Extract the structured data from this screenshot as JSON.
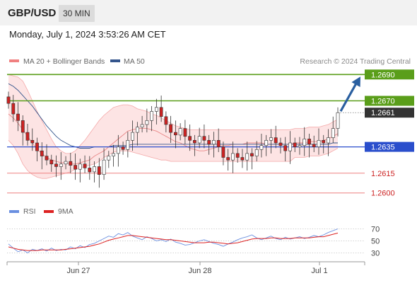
{
  "header": {
    "symbol": "GBP/USD",
    "timeframe": "30 MIN"
  },
  "datetime": "Monday, July 1, 2024 3:53:26 AM CET",
  "colors": {
    "resistance": "#5a9e1a",
    "support": "#2a4ecc",
    "minor_level": "#ee8080",
    "bollinger": "#f4a8a8",
    "bollinger_fill": "#fde4e4",
    "ma50": "#34558c",
    "bull_candle": "#ffffff",
    "bear_candle": "#cc2222",
    "rsi": "#6a8fe0",
    "rsi_ma": "#dd2222",
    "current_price": "#333333",
    "arrow": "#2a5fa0"
  },
  "chart_data": [
    {
      "type": "candlestick",
      "symbol": "GBP/USD",
      "interval": "30 MIN",
      "legend": [
        {
          "name": "MA 20 + Bollinger Bands",
          "color": "#f08080"
        },
        {
          "name": "MA 50",
          "color": "#34558c"
        }
      ],
      "source": "Research © 2024 Trading Central",
      "xticks": [
        "Jun 27",
        "Jun 28",
        "Jul 1"
      ],
      "ylim": [
        1.2595,
        1.2695
      ],
      "levels": [
        {
          "value": 1.269,
          "label": "1.2690",
          "kind": "target"
        },
        {
          "value": 1.267,
          "label": "1.2670",
          "kind": "resistance"
        },
        {
          "value": 1.2661,
          "label": "1.2661",
          "kind": "current"
        },
        {
          "value": 1.2635,
          "label": "1.2635",
          "kind": "support"
        },
        {
          "value": 1.2615,
          "label": "1.2615",
          "kind": "minor"
        },
        {
          "value": 1.26,
          "label": "1.2600",
          "kind": "minor"
        }
      ],
      "close_series": [
        1.2668,
        1.266,
        1.2655,
        1.2646,
        1.264,
        1.2638,
        1.2632,
        1.2628,
        1.2625,
        1.2622,
        1.262,
        1.2622,
        1.2624,
        1.2621,
        1.2618,
        1.2622,
        1.2619,
        1.2616,
        1.262,
        1.2614,
        1.2625,
        1.2628,
        1.263,
        1.2635,
        1.2633,
        1.264,
        1.2646,
        1.265,
        1.2652,
        1.2655,
        1.2662,
        1.2665,
        1.2658,
        1.2652,
        1.2646,
        1.2644,
        1.2649,
        1.2643,
        1.264,
        1.2638,
        1.2643,
        1.264,
        1.2637,
        1.264,
        1.2635,
        1.2627,
        1.2625,
        1.263,
        1.2627,
        1.2625,
        1.263,
        1.2628,
        1.2633,
        1.2636,
        1.264,
        1.2642,
        1.2638,
        1.2636,
        1.2632,
        1.2638,
        1.2635,
        1.2636,
        1.2641,
        1.2637,
        1.2635,
        1.264,
        1.2638,
        1.2642,
        1.2649,
        1.2661
      ],
      "ma20": [
        1.266,
        1.2657,
        1.2653,
        1.2648,
        1.2643,
        1.2638,
        1.2633,
        1.263,
        1.2627,
        1.2625,
        1.2624,
        1.2623,
        1.2623,
        1.2622,
        1.2622,
        1.2623,
        1.2624,
        1.2625,
        1.2628,
        1.263,
        1.2632,
        1.2635,
        1.2638,
        1.2641,
        1.2644,
        1.2647,
        1.2648,
        1.2649,
        1.2649,
        1.2649,
        1.2648,
        1.2647,
        1.2645,
        1.2643,
        1.2641,
        1.2639,
        1.2638,
        1.2636,
        1.2634,
        1.2633,
        1.2632,
        1.2632,
        1.2633,
        1.2634,
        1.2635,
        1.2636,
        1.2636,
        1.2637,
        1.2637,
        1.2637,
        1.2638,
        1.2638,
        1.2638,
        1.2638,
        1.2637,
        1.2637,
        1.2637,
        1.2637,
        1.2637,
        1.2637,
        1.2638,
        1.2638,
        1.2638,
        1.2639,
        1.2639,
        1.2639,
        1.264,
        1.2641,
        1.2643,
        1.2645
      ],
      "bb_upper": [
        1.269,
        1.2689,
        1.2688,
        1.2685,
        1.2678,
        1.267,
        1.2662,
        1.2655,
        1.2648,
        1.2641,
        1.2635,
        1.2632,
        1.263,
        1.263,
        1.2632,
        1.2636,
        1.264,
        1.2645,
        1.265,
        1.2655,
        1.2659,
        1.2662,
        1.2665,
        1.2666,
        1.2667,
        1.2667,
        1.2666,
        1.2664,
        1.2663,
        1.2662,
        1.266,
        1.2659,
        1.2657,
        1.2655,
        1.2653,
        1.2651,
        1.265,
        1.2649,
        1.2648,
        1.2648,
        1.2648,
        1.2648,
        1.2648,
        1.2648,
        1.2648,
        1.2648,
        1.2648,
        1.2648,
        1.2648,
        1.2648,
        1.2648,
        1.2648,
        1.2648,
        1.2648,
        1.2648,
        1.2648,
        1.2648,
        1.2648,
        1.2648,
        1.2648,
        1.2649,
        1.2649,
        1.2649,
        1.265,
        1.265,
        1.265,
        1.2651,
        1.2652,
        1.2654,
        1.2656
      ],
      "bb_lower": [
        1.264,
        1.2636,
        1.263,
        1.2622,
        1.2617,
        1.2614,
        1.2612,
        1.2611,
        1.2611,
        1.2612,
        1.2613,
        1.2614,
        1.2615,
        1.2616,
        1.2618,
        1.2619,
        1.262,
        1.2621,
        1.2622,
        1.2624,
        1.2627,
        1.2629,
        1.2631,
        1.2632,
        1.2632,
        1.2632,
        1.2631,
        1.263,
        1.2629,
        1.2628,
        1.2627,
        1.2626,
        1.2625,
        1.2625,
        1.2624,
        1.2624,
        1.2624,
        1.2624,
        1.2624,
        1.2624,
        1.2624,
        1.2624,
        1.2624,
        1.2624,
        1.2624,
        1.2624,
        1.2624,
        1.2624,
        1.2624,
        1.2624,
        1.2624,
        1.2624,
        1.2624,
        1.2624,
        1.2624,
        1.2624,
        1.2624,
        1.2624,
        1.2624,
        1.2624,
        1.2627,
        1.2627,
        1.2627,
        1.2628,
        1.2628,
        1.2628,
        1.2629,
        1.263,
        1.2632,
        1.2634
      ],
      "ma50": [
        1.2683,
        1.2681,
        1.2678,
        1.2674,
        1.267,
        1.2666,
        1.2661,
        1.2656,
        1.2651,
        1.2647,
        1.2643,
        1.264,
        1.2638,
        1.2636,
        1.2635,
        1.2634,
        1.2634,
        1.2634,
        1.2635,
        1.2635,
        1.2635,
        1.2635,
        1.2636,
        1.2636,
        1.2636,
        1.2636,
        1.2637,
        1.2637,
        1.2637,
        1.2637,
        1.2637,
        1.2637,
        1.2637,
        1.2637,
        1.2637,
        1.2637,
        1.2637,
        1.2637,
        1.2637,
        1.2637,
        1.2637,
        1.2637,
        1.2637,
        1.2637,
        1.2637,
        1.2637,
        1.2637,
        1.2637,
        1.2637,
        1.2637,
        1.2637,
        1.2637,
        1.2637,
        1.2637,
        1.2637,
        1.2637,
        1.2637,
        1.2637,
        1.2637,
        1.2637,
        1.2637,
        1.2637,
        1.2637,
        1.2637,
        1.2637,
        1.2637,
        1.2637,
        1.2637,
        1.2638,
        1.2638
      ]
    },
    {
      "type": "line",
      "indicator": "RSI",
      "legend": [
        {
          "name": "RSI",
          "color": "#6a8fe0"
        },
        {
          "name": "9MA",
          "color": "#dd2222"
        }
      ],
      "yticks": [
        70,
        50,
        30
      ],
      "ylim": [
        20,
        80
      ],
      "rsi": [
        45,
        38,
        32,
        35,
        30,
        36,
        34,
        37,
        33,
        38,
        34,
        36,
        35,
        40,
        37,
        42,
        39,
        44,
        46,
        50,
        54,
        58,
        56,
        62,
        60,
        64,
        58,
        55,
        52,
        57,
        54,
        50,
        52,
        49,
        53,
        48,
        46,
        43,
        44,
        47,
        50,
        52,
        49,
        46,
        44,
        41,
        45,
        48,
        52,
        55,
        57,
        60,
        55,
        52,
        55,
        58,
        54,
        52,
        56,
        53,
        55,
        57,
        54,
        56,
        59,
        57,
        60,
        64,
        67,
        70
      ],
      "rsi_ma": [
        40,
        38,
        36,
        35,
        34,
        34,
        34,
        35,
        35,
        35,
        35,
        35,
        36,
        37,
        38,
        39,
        40,
        41,
        43,
        45,
        48,
        51,
        53,
        55,
        57,
        59,
        59,
        58,
        57,
        56,
        55,
        54,
        53,
        52,
        52,
        51,
        50,
        49,
        48,
        47,
        47,
        47,
        48,
        48,
        47,
        46,
        45,
        46,
        47,
        49,
        51,
        53,
        54,
        54,
        54,
        55,
        55,
        54,
        54,
        54,
        55,
        55,
        55,
        55,
        56,
        57,
        57,
        59,
        61,
        63
      ]
    }
  ]
}
